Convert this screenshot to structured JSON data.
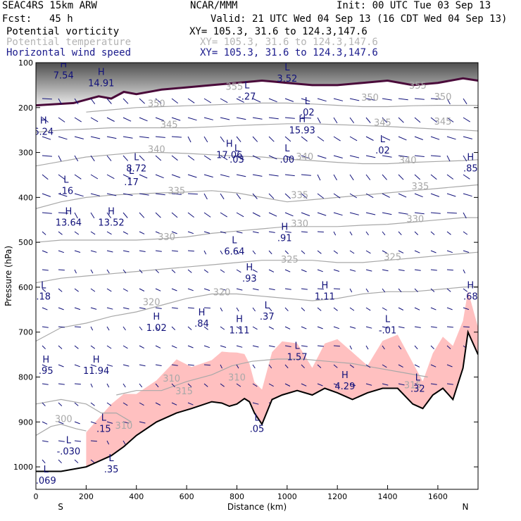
{
  "header": {
    "model": "SEAC4RS 15km ARW",
    "org": "NCAR/MMM",
    "init": "Init: 00 UTC Tue 03 Sep 13",
    "fcst_label": "Fcst:",
    "fcst_value": "45 h",
    "valid": "Valid: 21 UTC Wed 04 Sep 13 (16 CDT Wed 04 Sep 13)"
  },
  "legend": [
    {
      "field": "Potential vorticity",
      "xy": "XY= 105.3, 31.6 to 124.3,147.6",
      "color": "#000000"
    },
    {
      "field": "Potential temperature",
      "xy": "XY= 105.3, 31.6 to 124.3,147.6",
      "color": "#b4b4b4"
    },
    {
      "field": "Horizontal wind speed",
      "xy": "XY= 105.3, 31.6 to 124.3,147.6",
      "color": "#1a1a8c"
    }
  ],
  "colors": {
    "pv_fill": "#ffc0c0",
    "theta_line": "#a8a8a8",
    "wind_vector": "#10107a",
    "pv_contour": "#4a0a3a",
    "terrain": "#000000"
  },
  "chart_data": {
    "type": "cross-section",
    "xlabel": "Distance (km)",
    "ylabel": "Pressure (hPa)",
    "x_range": [
      0,
      1760
    ],
    "y_range": [
      100,
      1050
    ],
    "x_ticks": [
      0,
      200,
      400,
      600,
      800,
      1000,
      1200,
      1400,
      1600
    ],
    "y_ticks": [
      100,
      200,
      300,
      400,
      500,
      600,
      700,
      800,
      900,
      1000
    ],
    "end_labels": {
      "left": "S",
      "right": "N"
    },
    "terrain_surface": [
      [
        0,
        1010
      ],
      [
        100,
        1010
      ],
      [
        200,
        1000
      ],
      [
        300,
        975
      ],
      [
        350,
        955
      ],
      [
        400,
        930
      ],
      [
        480,
        900
      ],
      [
        560,
        880
      ],
      [
        620,
        870
      ],
      [
        700,
        855
      ],
      [
        740,
        858
      ],
      [
        770,
        865
      ],
      [
        800,
        860
      ],
      [
        830,
        848
      ],
      [
        850,
        855
      ],
      [
        870,
        880
      ],
      [
        900,
        905
      ],
      [
        940,
        850
      ],
      [
        980,
        840
      ],
      [
        1040,
        830
      ],
      [
        1100,
        840
      ],
      [
        1150,
        825
      ],
      [
        1200,
        835
      ],
      [
        1260,
        850
      ],
      [
        1320,
        835
      ],
      [
        1380,
        825
      ],
      [
        1440,
        825
      ],
      [
        1500,
        860
      ],
      [
        1540,
        870
      ],
      [
        1580,
        840
      ],
      [
        1620,
        825
      ],
      [
        1660,
        850
      ],
      [
        1700,
        780
      ],
      [
        1720,
        700
      ],
      [
        1760,
        750
      ]
    ],
    "tropopause_pv": [
      [
        0,
        195
      ],
      [
        150,
        190
      ],
      [
        250,
        175
      ],
      [
        300,
        180
      ],
      [
        350,
        165
      ],
      [
        400,
        170
      ],
      [
        500,
        160
      ],
      [
        600,
        155
      ],
      [
        700,
        150
      ],
      [
        800,
        145
      ],
      [
        900,
        140
      ],
      [
        1000,
        145
      ],
      [
        1100,
        150
      ],
      [
        1200,
        150
      ],
      [
        1300,
        145
      ],
      [
        1400,
        140
      ],
      [
        1500,
        150
      ],
      [
        1600,
        145
      ],
      [
        1700,
        135
      ],
      [
        1760,
        140
      ]
    ],
    "isentropes": [
      {
        "label": "300",
        "points": [
          [
            0,
            930
          ],
          [
            60,
            910
          ],
          [
            100,
            905
          ],
          [
            160,
            915
          ],
          [
            200,
            920
          ]
        ]
      },
      {
        "label": "310",
        "points": [
          [
            0,
            860
          ],
          [
            100,
            850
          ],
          [
            200,
            860
          ],
          [
            260,
            880
          ],
          [
            320,
            880
          ],
          [
            380,
            900
          ]
        ]
      },
      {
        "label": "315",
        "points": [
          [
            320,
            840
          ],
          [
            400,
            830
          ],
          [
            500,
            830
          ],
          [
            600,
            810
          ],
          [
            700,
            795
          ],
          [
            780,
            775
          ],
          [
            860,
            765
          ],
          [
            960,
            760
          ],
          [
            1060,
            760
          ],
          [
            1160,
            765
          ],
          [
            1260,
            770
          ],
          [
            1360,
            780
          ],
          [
            1460,
            790
          ],
          [
            1560,
            800
          ]
        ]
      },
      {
        "label": "320",
        "points": [
          [
            0,
            720
          ],
          [
            100,
            690
          ],
          [
            200,
            680
          ],
          [
            300,
            665
          ],
          [
            400,
            655
          ],
          [
            500,
            640
          ],
          [
            600,
            625
          ],
          [
            700,
            615
          ],
          [
            800,
            615
          ],
          [
            900,
            620
          ],
          [
            1000,
            625
          ],
          [
            1100,
            630
          ],
          [
            1200,
            625
          ],
          [
            1300,
            615
          ],
          [
            1400,
            610
          ],
          [
            1500,
            610
          ],
          [
            1600,
            605
          ],
          [
            1700,
            600
          ],
          [
            1760,
            598
          ]
        ]
      },
      {
        "label": "325",
        "points": [
          [
            0,
            590
          ],
          [
            100,
            580
          ],
          [
            200,
            575
          ],
          [
            300,
            570
          ],
          [
            400,
            565
          ],
          [
            500,
            560
          ],
          [
            600,
            555
          ],
          [
            700,
            550
          ],
          [
            800,
            545
          ],
          [
            900,
            540
          ],
          [
            1000,
            540
          ],
          [
            1100,
            540
          ],
          [
            1200,
            545
          ],
          [
            1300,
            545
          ],
          [
            1400,
            540
          ],
          [
            1500,
            535
          ],
          [
            1600,
            530
          ],
          [
            1700,
            525
          ],
          [
            1760,
            522
          ]
        ]
      },
      {
        "label": "330",
        "points": [
          [
            0,
            500
          ],
          [
            100,
            495
          ],
          [
            200,
            495
          ],
          [
            300,
            495
          ],
          [
            400,
            495
          ],
          [
            500,
            492
          ],
          [
            600,
            488
          ],
          [
            700,
            480
          ],
          [
            800,
            475
          ],
          [
            900,
            470
          ],
          [
            1000,
            465
          ],
          [
            1100,
            465
          ],
          [
            1200,
            465
          ],
          [
            1300,
            462
          ],
          [
            1400,
            460
          ],
          [
            1500,
            455
          ],
          [
            1600,
            450
          ],
          [
            1700,
            445
          ],
          [
            1760,
            445
          ]
        ]
      },
      {
        "label": "335",
        "points": [
          [
            0,
            425
          ],
          [
            100,
            410
          ],
          [
            200,
            400
          ],
          [
            300,
            395
          ],
          [
            400,
            392
          ],
          [
            500,
            390
          ],
          [
            600,
            388
          ],
          [
            700,
            385
          ],
          [
            800,
            390
          ],
          [
            900,
            400
          ],
          [
            1000,
            410
          ],
          [
            1100,
            405
          ],
          [
            1200,
            400
          ],
          [
            1300,
            395
          ],
          [
            1400,
            390
          ],
          [
            1500,
            385
          ],
          [
            1600,
            380
          ],
          [
            1700,
            375
          ],
          [
            1760,
            372
          ]
        ]
      },
      {
        "label": "340",
        "points": [
          [
            0,
            330
          ],
          [
            100,
            320
          ],
          [
            200,
            310
          ],
          [
            300,
            305
          ],
          [
            400,
            300
          ],
          [
            500,
            300
          ],
          [
            600,
            302
          ],
          [
            700,
            305
          ],
          [
            800,
            308
          ],
          [
            900,
            310
          ],
          [
            1000,
            315
          ],
          [
            1100,
            318
          ],
          [
            1200,
            322
          ],
          [
            1300,
            325
          ],
          [
            1400,
            325
          ],
          [
            1500,
            322
          ],
          [
            1600,
            320
          ],
          [
            1700,
            318
          ],
          [
            1760,
            316
          ]
        ]
      },
      {
        "label": "345",
        "points": [
          [
            0,
            255
          ],
          [
            100,
            250
          ],
          [
            200,
            248
          ],
          [
            300,
            245
          ],
          [
            400,
            245
          ],
          [
            500,
            245
          ],
          [
            600,
            245
          ],
          [
            700,
            243
          ],
          [
            800,
            240
          ],
          [
            900,
            238
          ],
          [
            1000,
            236
          ],
          [
            1100,
            236
          ],
          [
            1200,
            238
          ],
          [
            1300,
            240
          ],
          [
            1400,
            242
          ],
          [
            1500,
            245
          ],
          [
            1600,
            248
          ],
          [
            1700,
            250
          ],
          [
            1760,
            252
          ]
        ]
      },
      {
        "label": "350",
        "points": [
          [
            200,
            210
          ],
          [
            300,
            205
          ],
          [
            400,
            200
          ],
          [
            500,
            198
          ],
          [
            600,
            196
          ],
          [
            700,
            194
          ],
          [
            800,
            192
          ],
          [
            900,
            190
          ],
          [
            1000,
            190
          ],
          [
            1100,
            192
          ],
          [
            1200,
            195
          ],
          [
            1300,
            198
          ],
          [
            1400,
            198
          ],
          [
            1500,
            196
          ],
          [
            1600,
            195
          ],
          [
            1700,
            195
          ],
          [
            1760,
            195
          ]
        ]
      }
    ],
    "theta_labels": [
      {
        "text": "300",
        "x": 110,
        "p": 900
      },
      {
        "text": "310",
        "x": 350,
        "p": 915
      },
      {
        "text": "310",
        "x": 540,
        "p": 810
      },
      {
        "text": "310",
        "x": 800,
        "p": 808
      },
      {
        "text": "315",
        "x": 590,
        "p": 838
      },
      {
        "text": "315",
        "x": 1500,
        "p": 825
      },
      {
        "text": "320",
        "x": 460,
        "p": 640
      },
      {
        "text": "320",
        "x": 740,
        "p": 618
      },
      {
        "text": "325",
        "x": 1010,
        "p": 545
      },
      {
        "text": "325",
        "x": 1420,
        "p": 540
      },
      {
        "text": "330",
        "x": 520,
        "p": 495
      },
      {
        "text": "330",
        "x": 1050,
        "p": 465
      },
      {
        "text": "330",
        "x": 1510,
        "p": 455
      },
      {
        "text": "335",
        "x": 560,
        "p": 392
      },
      {
        "text": "335",
        "x": 1050,
        "p": 402
      },
      {
        "text": "335",
        "x": 1530,
        "p": 382
      },
      {
        "text": "340",
        "x": 480,
        "p": 300
      },
      {
        "text": "340",
        "x": 1070,
        "p": 316
      },
      {
        "text": "340",
        "x": 1480,
        "p": 324
      },
      {
        "text": "345",
        "x": 530,
        "p": 245
      },
      {
        "text": "345",
        "x": 1380,
        "p": 240
      },
      {
        "text": "345",
        "x": 1620,
        "p": 238
      },
      {
        "text": "350",
        "x": 480,
        "p": 198
      },
      {
        "text": "350",
        "x": 1330,
        "p": 185
      },
      {
        "text": "350",
        "x": 1620,
        "p": 183
      },
      {
        "text": "355",
        "x": 790,
        "p": 160
      },
      {
        "text": "355",
        "x": 1520,
        "p": 158
      }
    ],
    "extrema": [
      {
        "kind": "H",
        "value": "14.91",
        "x": 260,
        "p": 140
      },
      {
        "kind": "L",
        "value": "3.52",
        "x": 1000,
        "p": 130
      },
      {
        "kind": "L",
        "value": "-.27",
        "x": 840,
        "p": 170
      },
      {
        "kind": "L",
        "value": ".02",
        "x": 1080,
        "p": 205
      },
      {
        "kind": "H",
        "value": "15.93",
        "x": 1060,
        "p": 245
      },
      {
        "kind": "H",
        "value": "6.24",
        "x": 30,
        "p": 248
      },
      {
        "kind": "H",
        "value": "17.06",
        "x": 770,
        "p": 300
      },
      {
        "kind": "L",
        "value": ".03",
        "x": 800,
        "p": 310
      },
      {
        "kind": "L",
        "value": ".00",
        "x": 1000,
        "p": 310
      },
      {
        "kind": "L",
        "value": ".02",
        "x": 1380,
        "p": 290
      },
      {
        "kind": "H",
        "value": ".85",
        "x": 1730,
        "p": 330
      },
      {
        "kind": "L",
        "value": "8.72",
        "x": 400,
        "p": 330
      },
      {
        "kind": "L",
        "value": ".17",
        "x": 380,
        "p": 360
      },
      {
        "kind": "L",
        "value": ".16",
        "x": 120,
        "p": 380
      },
      {
        "kind": "H",
        "value": "13.64",
        "x": 130,
        "p": 450
      },
      {
        "kind": "H",
        "value": "13.52",
        "x": 300,
        "p": 450
      },
      {
        "kind": "H",
        "value": ".91",
        "x": 990,
        "p": 485
      },
      {
        "kind": "L",
        "value": "6.64",
        "x": 790,
        "p": 515
      },
      {
        "kind": "H",
        "value": ".93",
        "x": 850,
        "p": 575
      },
      {
        "kind": "L",
        "value": ".18",
        "x": 30,
        "p": 615
      },
      {
        "kind": "H",
        "value": "1.11",
        "x": 1150,
        "p": 615
      },
      {
        "kind": "H",
        "value": ".68",
        "x": 1730,
        "p": 615
      },
      {
        "kind": "H",
        "value": "1.02",
        "x": 480,
        "p": 685
      },
      {
        "kind": "H",
        "value": ".84",
        "x": 660,
        "p": 675
      },
      {
        "kind": "H",
        "value": "1.11",
        "x": 810,
        "p": 690
      },
      {
        "kind": "L",
        "value": ".37",
        "x": 920,
        "p": 660
      },
      {
        "kind": "L",
        "value": "-.01",
        "x": 1400,
        "p": 690
      },
      {
        "kind": "L",
        "value": "1.57",
        "x": 1040,
        "p": 750
      },
      {
        "kind": "H",
        "value": ".95",
        "x": 40,
        "p": 780
      },
      {
        "kind": "H",
        "value": "11.94",
        "x": 240,
        "p": 780
      },
      {
        "kind": "H",
        "value": "4.29",
        "x": 1230,
        "p": 815
      },
      {
        "kind": "L",
        "value": ".32",
        "x": 1520,
        "p": 820
      },
      {
        "kind": "L",
        "value": ".15",
        "x": 270,
        "p": 910
      },
      {
        "kind": "L",
        "value": "-.030",
        "x": 130,
        "p": 960
      },
      {
        "kind": "L",
        "value": ".35",
        "x": 300,
        "p": 1000
      },
      {
        "kind": "L",
        "value": ".069",
        "x": 40,
        "p": 1025
      },
      {
        "kind": "L",
        "value": ".05",
        "x": 880,
        "p": 910
      },
      {
        "kind": "H",
        "value": "7.54",
        "x": 110,
        "p": 123
      }
    ]
  }
}
